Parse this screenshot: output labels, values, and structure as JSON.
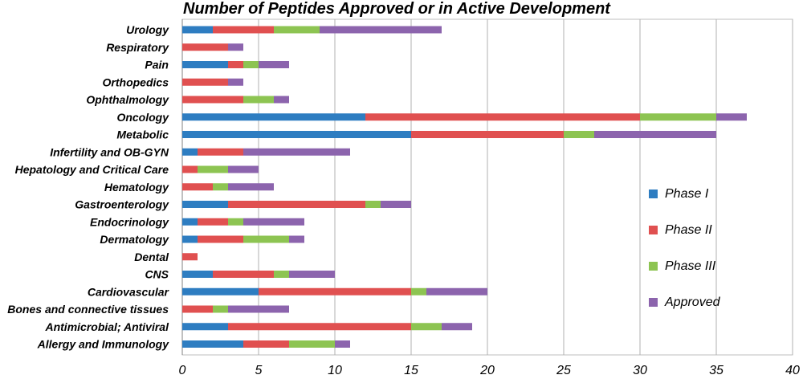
{
  "chart_data": {
    "type": "bar",
    "orientation": "horizontal",
    "stacked": true,
    "title": "Number of Peptides Approved or in Active Development",
    "xlabel": "",
    "ylabel": "",
    "xlim": [
      0,
      40
    ],
    "x_ticks": [
      0,
      5,
      10,
      15,
      20,
      25,
      30,
      35,
      40
    ],
    "grid": "vertical",
    "legend_position": "right",
    "categories": [
      "Urology",
      "Respiratory",
      "Pain",
      "Orthopedics",
      "Ophthalmology",
      "Oncology",
      "Metabolic",
      "Infertility and OB-GYN",
      "Hepatology and Critical Care",
      "Hematology",
      "Gastroenterology",
      "Endocrinology",
      "Dermatology",
      "Dental",
      "CNS",
      "Cardiovascular",
      "Bones and connective tissues",
      "Antimicrobial; Antiviral",
      "Allergy and Immunology"
    ],
    "series": [
      {
        "name": "Phase I",
        "color": "#2e7dc1",
        "values": [
          2,
          0,
          3,
          0,
          0,
          12,
          15,
          1,
          0,
          0,
          3,
          1,
          1,
          0,
          2,
          5,
          0,
          3,
          4
        ]
      },
      {
        "name": "Phase II",
        "color": "#e05050",
        "values": [
          4,
          3,
          1,
          3,
          4,
          18,
          10,
          3,
          1,
          2,
          9,
          2,
          3,
          1,
          4,
          10,
          2,
          12,
          3
        ]
      },
      {
        "name": "Phase III",
        "color": "#8dc452",
        "values": [
          3,
          0,
          1,
          0,
          2,
          5,
          2,
          0,
          2,
          1,
          1,
          1,
          3,
          0,
          1,
          1,
          1,
          2,
          3
        ]
      },
      {
        "name": "Approved",
        "color": "#8c64ad",
        "values": [
          8,
          1,
          2,
          1,
          1,
          2,
          8,
          7,
          2,
          3,
          2,
          4,
          1,
          0,
          3,
          4,
          4,
          2,
          1
        ]
      }
    ]
  }
}
